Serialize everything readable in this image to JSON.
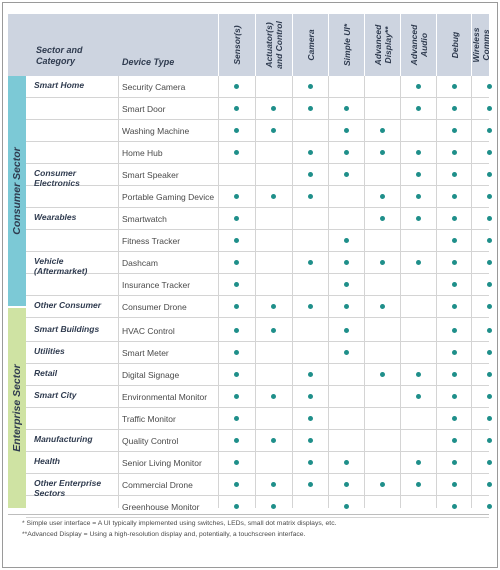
{
  "header": {
    "sector_category": "Sector and\nCategory",
    "device_type": "Device Type",
    "columns": [
      "Sensor(s)",
      "Actuator(s)\nand Control",
      "Camera",
      "Simple UI*",
      "Advanced\nDisplay**",
      "Advanced\nAudio",
      "Debug",
      "Wireless\nComms"
    ]
  },
  "sectors": [
    {
      "label": "Consumer Sector",
      "color": "#7cc9d6"
    },
    {
      "label": "Enterprise Sector",
      "color": "#cfe3a3"
    }
  ],
  "rows": [
    {
      "category": "Smart Home",
      "device": "Security Camera",
      "marks": [
        1,
        0,
        1,
        0,
        0,
        1,
        1,
        1
      ]
    },
    {
      "category": "",
      "device": "Smart Door",
      "marks": [
        1,
        1,
        1,
        1,
        0,
        1,
        1,
        1
      ]
    },
    {
      "category": "",
      "device": "Washing Machine",
      "marks": [
        1,
        1,
        0,
        1,
        1,
        0,
        1,
        1
      ]
    },
    {
      "category": "",
      "device": "Home Hub",
      "marks": [
        1,
        0,
        1,
        1,
        1,
        1,
        1,
        1
      ]
    },
    {
      "category": "Consumer Electronics",
      "device": "Smart Speaker",
      "marks": [
        0,
        0,
        1,
        1,
        0,
        1,
        1,
        1
      ]
    },
    {
      "category": "",
      "device": "Portable Gaming Device",
      "marks": [
        1,
        1,
        1,
        0,
        1,
        1,
        1,
        1
      ]
    },
    {
      "category": "Wearables",
      "device": "Smartwatch",
      "marks": [
        1,
        0,
        0,
        0,
        1,
        1,
        1,
        1
      ]
    },
    {
      "category": "",
      "device": "Fitness Tracker",
      "marks": [
        1,
        0,
        0,
        1,
        0,
        0,
        1,
        1
      ]
    },
    {
      "category": "Vehicle (Aftermarket)",
      "device": "Dashcam",
      "marks": [
        1,
        0,
        1,
        1,
        1,
        1,
        1,
        1
      ]
    },
    {
      "category": "",
      "device": "Insurance Tracker",
      "marks": [
        1,
        0,
        0,
        1,
        0,
        0,
        1,
        1
      ]
    },
    {
      "category": "Other Consumer",
      "device": "Consumer Drone",
      "marks": [
        1,
        1,
        1,
        1,
        1,
        0,
        1,
        1
      ]
    },
    {
      "category": "Smart Buildings",
      "device": "HVAC Control",
      "marks": [
        1,
        1,
        0,
        1,
        0,
        0,
        1,
        1
      ]
    },
    {
      "category": "Utilities",
      "device": "Smart Meter",
      "marks": [
        1,
        0,
        0,
        1,
        0,
        0,
        1,
        1
      ]
    },
    {
      "category": "Retail",
      "device": "Digital Signage",
      "marks": [
        1,
        0,
        1,
        0,
        1,
        1,
        1,
        1
      ]
    },
    {
      "category": "Smart City",
      "device": "Environmental Monitor",
      "marks": [
        1,
        1,
        1,
        0,
        0,
        1,
        1,
        1
      ]
    },
    {
      "category": "",
      "device": "Traffic Monitor",
      "marks": [
        1,
        0,
        1,
        0,
        0,
        0,
        1,
        1
      ]
    },
    {
      "category": "Manufacturing",
      "device": "Quality Control",
      "marks": [
        1,
        1,
        1,
        0,
        0,
        0,
        1,
        1
      ]
    },
    {
      "category": "Health",
      "device": "Senior Living Monitor",
      "marks": [
        1,
        0,
        1,
        1,
        0,
        1,
        1,
        1
      ]
    },
    {
      "category": "Other Enterprise Sectors",
      "device": "Commercial Drone",
      "marks": [
        1,
        1,
        1,
        1,
        1,
        1,
        1,
        1
      ]
    },
    {
      "category": "",
      "device": "Greenhouse Monitor",
      "marks": [
        1,
        1,
        0,
        1,
        0,
        0,
        1,
        1
      ]
    }
  ],
  "footnotes": [
    "* Simple user interface = A UI typically implemented using switches, LEDs, small dot matrix displays, etc.",
    "**Advanced Display = Using a high-resolution display and, potentially, a touchscreen interface."
  ],
  "colors": {
    "header_bg": "#cdd4e0",
    "dot": "#1f8f8a"
  }
}
